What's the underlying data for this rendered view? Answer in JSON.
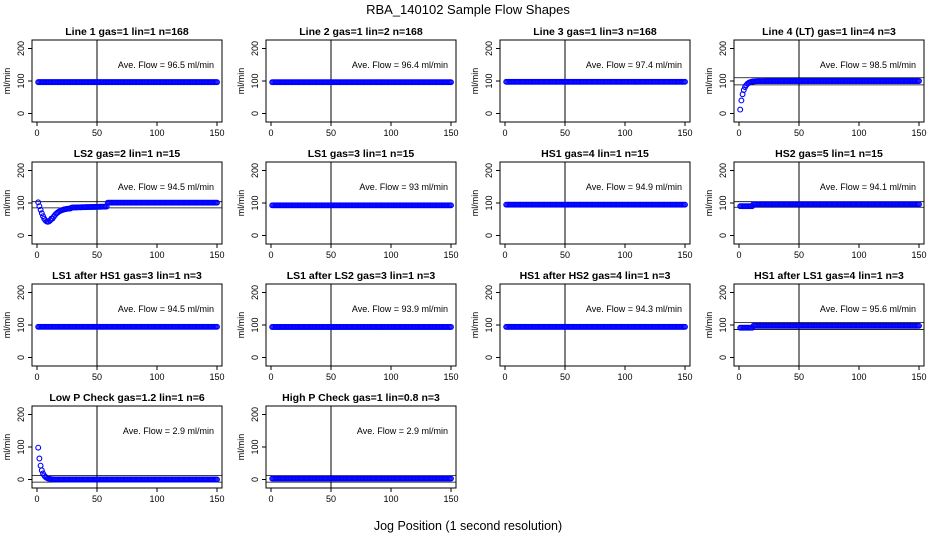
{
  "page": {
    "title": "RBA_140102  Sample Flow Shapes",
    "x_axis_title": "Jog Position (1 second resolution)"
  },
  "colors": {
    "points": "#0000ff",
    "axis": "#000000"
  },
  "chart_data": [
    {
      "type": "scatter",
      "title": "Line 1 gas=1 lin=1 n=168",
      "ylabel": "ml/min",
      "annotation": "Ave. Flow = 96.5  ml/min",
      "xlim": [
        0,
        150
      ],
      "ylim": [
        -20,
        220
      ],
      "xticks": [
        0,
        50,
        100,
        150
      ],
      "yticks": [
        0,
        100,
        200
      ],
      "vline": 50,
      "hlines": [],
      "shape": "flat",
      "mean": 96.5
    },
    {
      "type": "scatter",
      "title": "Line 2 gas=1 lin=2 n=168",
      "ylabel": "ml/min",
      "annotation": "Ave. Flow = 96.4  ml/min",
      "xlim": [
        0,
        150
      ],
      "ylim": [
        -20,
        220
      ],
      "xticks": [
        0,
        50,
        100,
        150
      ],
      "yticks": [
        0,
        100,
        200
      ],
      "vline": 50,
      "hlines": [],
      "shape": "flat",
      "mean": 96.4
    },
    {
      "type": "scatter",
      "title": "Line 3 gas=1 lin=3 n=168",
      "ylabel": "ml/min",
      "annotation": "Ave. Flow = 97.4  ml/min",
      "xlim": [
        0,
        150
      ],
      "ylim": [
        -20,
        220
      ],
      "xticks": [
        0,
        50,
        100,
        150
      ],
      "yticks": [
        0,
        100,
        200
      ],
      "vline": 50,
      "hlines": [],
      "shape": "flat",
      "mean": 97.4
    },
    {
      "type": "scatter",
      "title": "Line 4 (LT) gas=1 lin=4 n=3",
      "ylabel": "ml/min",
      "annotation": "Ave. Flow = 98.5  ml/min",
      "xlim": [
        0,
        150
      ],
      "ylim": [
        -20,
        220
      ],
      "xticks": [
        0,
        50,
        100,
        150
      ],
      "yticks": [
        0,
        100,
        200
      ],
      "vline": 50,
      "hlines": [
        88,
        110
      ],
      "shape": "rise",
      "mean": 98.5
    },
    {
      "type": "scatter",
      "title": "LS2 gas=2 lin=1 n=15",
      "ylabel": "ml/min",
      "annotation": "Ave. Flow = 94.5  ml/min",
      "xlim": [
        0,
        150
      ],
      "ylim": [
        -20,
        220
      ],
      "xticks": [
        0,
        50,
        100,
        150
      ],
      "yticks": [
        0,
        100,
        200
      ],
      "vline": 50,
      "hlines": [
        85,
        104
      ],
      "shape": "dip",
      "mean": 94.5
    },
    {
      "type": "scatter",
      "title": "LS1 gas=3 lin=1 n=15",
      "ylabel": "ml/min",
      "annotation": "Ave. Flow = 93  ml/min",
      "xlim": [
        0,
        150
      ],
      "ylim": [
        -20,
        220
      ],
      "xticks": [
        0,
        50,
        100,
        150
      ],
      "yticks": [
        0,
        100,
        200
      ],
      "vline": 50,
      "hlines": [],
      "shape": "flat",
      "mean": 93
    },
    {
      "type": "scatter",
      "title": "HS1 gas=4 lin=1 n=15",
      "ylabel": "ml/min",
      "annotation": "Ave. Flow = 94.9  ml/min",
      "xlim": [
        0,
        150
      ],
      "ylim": [
        -20,
        220
      ],
      "xticks": [
        0,
        50,
        100,
        150
      ],
      "yticks": [
        0,
        100,
        200
      ],
      "vline": 50,
      "hlines": [],
      "shape": "flat",
      "mean": 94.9
    },
    {
      "type": "scatter",
      "title": "HS2 gas=5 lin=1 n=15",
      "ylabel": "ml/min",
      "annotation": "Ave. Flow = 94.1  ml/min",
      "xlim": [
        0,
        150
      ],
      "ylim": [
        -20,
        220
      ],
      "xticks": [
        0,
        50,
        100,
        150
      ],
      "yticks": [
        0,
        100,
        200
      ],
      "vline": 50,
      "hlines": [
        87,
        104
      ],
      "shape": "flat",
      "mean": 94.1
    },
    {
      "type": "scatter",
      "title": "LS1 after HS1 gas=3 lin=1 n=3",
      "ylabel": "ml/min",
      "annotation": "Ave. Flow = 94.5  ml/min",
      "xlim": [
        0,
        150
      ],
      "ylim": [
        -20,
        220
      ],
      "xticks": [
        0,
        50,
        100,
        150
      ],
      "yticks": [
        0,
        100,
        200
      ],
      "vline": 50,
      "hlines": [],
      "shape": "flat",
      "mean": 94.5
    },
    {
      "type": "scatter",
      "title": "LS1 after LS2 gas=3 lin=1 n=3",
      "ylabel": "ml/min",
      "annotation": "Ave. Flow = 93.9  ml/min",
      "xlim": [
        0,
        150
      ],
      "ylim": [
        -20,
        220
      ],
      "xticks": [
        0,
        50,
        100,
        150
      ],
      "yticks": [
        0,
        100,
        200
      ],
      "vline": 50,
      "hlines": [],
      "shape": "flat",
      "mean": 93.9
    },
    {
      "type": "scatter",
      "title": "HS1 after HS2 gas=4 lin=1 n=3",
      "ylabel": "ml/min",
      "annotation": "Ave. Flow = 94.3  ml/min",
      "xlim": [
        0,
        150
      ],
      "ylim": [
        -20,
        220
      ],
      "xticks": [
        0,
        50,
        100,
        150
      ],
      "yticks": [
        0,
        100,
        200
      ],
      "vline": 50,
      "hlines": [],
      "shape": "flat",
      "mean": 94.3
    },
    {
      "type": "scatter",
      "title": "HS1 after LS1 gas=4 lin=1 n=3",
      "ylabel": "ml/min",
      "annotation": "Ave. Flow = 95.6  ml/min",
      "xlim": [
        0,
        150
      ],
      "ylim": [
        -20,
        220
      ],
      "xticks": [
        0,
        50,
        100,
        150
      ],
      "yticks": [
        0,
        100,
        200
      ],
      "vline": 50,
      "hlines": [
        86,
        108
      ],
      "shape": "flat",
      "mean": 95.6
    },
    {
      "type": "scatter",
      "title": "Low P Check gas=1.2 lin=1 n=6",
      "ylabel": "ml/min",
      "annotation": "Ave. Flow = 2.9  ml/min",
      "xlim": [
        0,
        150
      ],
      "ylim": [
        -20,
        220
      ],
      "xticks": [
        0,
        50,
        100,
        150
      ],
      "yticks": [
        0,
        100,
        200
      ],
      "vline": 50,
      "hlines": [
        -8,
        12
      ],
      "shape": "decay",
      "mean": 2.9
    },
    {
      "type": "scatter",
      "title": "High P Check gas=1 lin=0.8 n=3",
      "ylabel": "ml/min",
      "annotation": "Ave. Flow = 2.9  ml/min",
      "xlim": [
        0,
        150
      ],
      "ylim": [
        -20,
        220
      ],
      "xticks": [
        0,
        50,
        100,
        150
      ],
      "yticks": [
        0,
        100,
        200
      ],
      "vline": 50,
      "hlines": [
        -8,
        12
      ],
      "shape": "flat",
      "mean": 2.9
    }
  ]
}
